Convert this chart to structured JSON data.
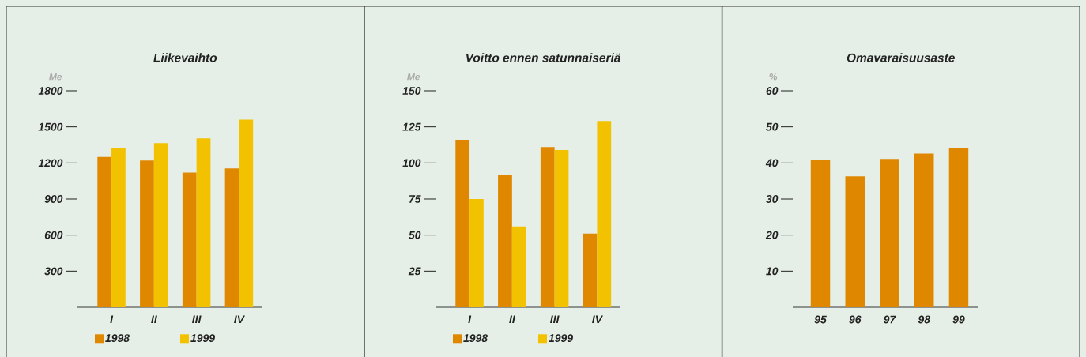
{
  "chart_data": [
    {
      "type": "bar",
      "title": "Liikevaihto",
      "ylabel": "Me",
      "categories": [
        "I",
        "II",
        "III",
        "IV"
      ],
      "series": [
        {
          "name": "1998",
          "color": "#e08700",
          "values": [
            1250,
            1220,
            1120,
            1155
          ]
        },
        {
          "name": "1999",
          "color": "#f2c200",
          "values": [
            1320,
            1365,
            1405,
            1560
          ]
        }
      ],
      "ylim": [
        0,
        1800
      ],
      "yticks": [
        300,
        600,
        900,
        1200,
        1500,
        1800
      ],
      "legend": "bottom"
    },
    {
      "type": "bar",
      "title": "Voitto ennen satunnaiseriä",
      "ylabel": "Me",
      "categories": [
        "I",
        "II",
        "III",
        "IV"
      ],
      "series": [
        {
          "name": "1998",
          "color": "#e08700",
          "values": [
            116,
            92,
            111,
            51
          ]
        },
        {
          "name": "1999",
          "color": "#f2c200",
          "values": [
            75,
            56,
            109,
            129
          ]
        }
      ],
      "ylim": [
        0,
        150
      ],
      "yticks": [
        25,
        50,
        75,
        100,
        125,
        150
      ],
      "legend": "bottom"
    },
    {
      "type": "bar",
      "title": "Omavaraisuusaste",
      "ylabel": "%",
      "categories": [
        "95",
        "96",
        "97",
        "98",
        "99"
      ],
      "values": [
        40.9,
        36.3,
        41.1,
        42.6,
        44.0
      ],
      "color": "#e08700",
      "ylim": [
        0,
        60
      ],
      "yticks": [
        10,
        20,
        30,
        40,
        50,
        60
      ]
    }
  ]
}
